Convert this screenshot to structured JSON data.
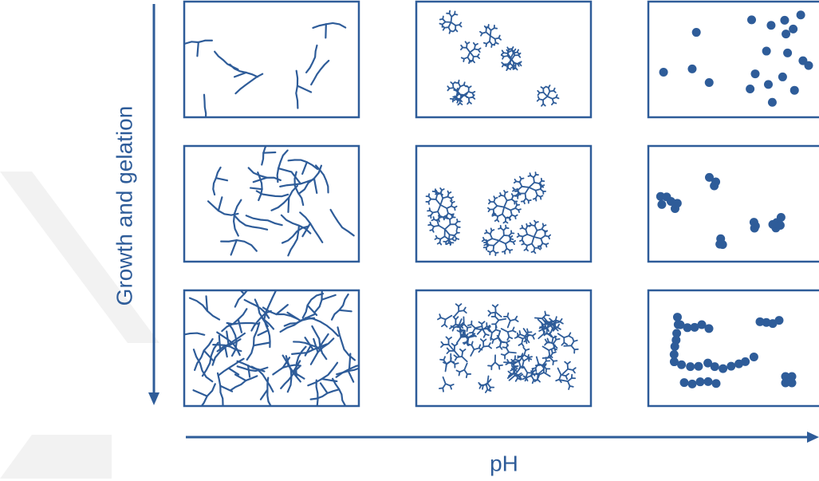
{
  "axes": {
    "y_label": "Growth and gelation",
    "x_label": "pH"
  }
}
